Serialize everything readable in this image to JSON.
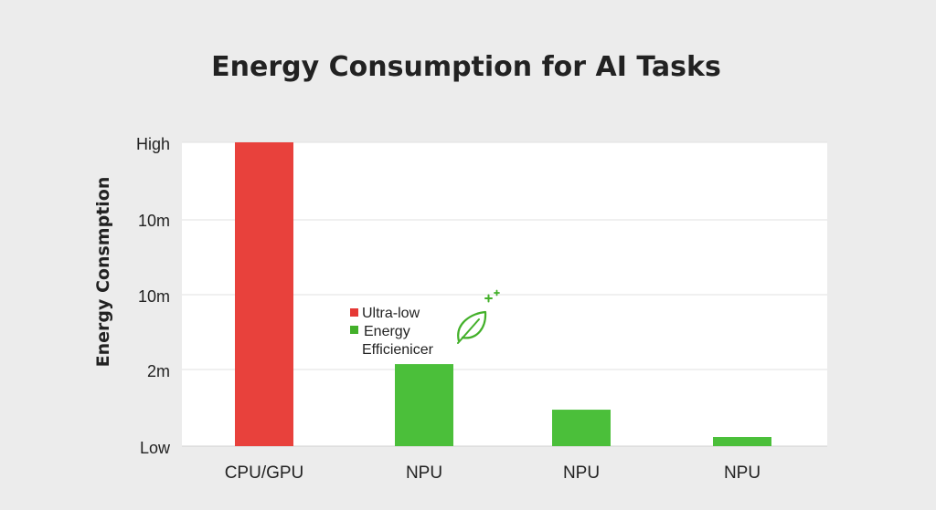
{
  "chart_data": {
    "type": "bar",
    "title": "Energy Consumption for AI Tasks",
    "xlabel": "",
    "ylabel": "Energy Consmption",
    "y_tick_labels": [
      "Low",
      "2m",
      "10m",
      "10m",
      "High"
    ],
    "categories": [
      "CPU/GPU",
      "NPU",
      "NPU",
      "NPU"
    ],
    "values": [
      100,
      27,
      12,
      3
    ],
    "ylim": [
      0,
      100
    ],
    "grid": true,
    "legend_position": "inside-center-left",
    "legend": [
      {
        "label": "Ultra-low",
        "color": "#e53935"
      },
      {
        "label": "Energy",
        "color": "#43b02a"
      },
      {
        "label": "Efficienicer",
        "color": ""
      }
    ],
    "bar_colors": [
      "#e8413c",
      "#4bbf3a",
      "#4bbf3a",
      "#4bbf3a"
    ],
    "annotation_icon": "leaf-icon"
  },
  "colors": {
    "background": "#ececec",
    "plot_area": "#ffffff",
    "gridline": "#e2e2e2",
    "cpu_gpu": "#e8413c",
    "npu": "#4bbf3a",
    "leaf": "#43b02a"
  }
}
